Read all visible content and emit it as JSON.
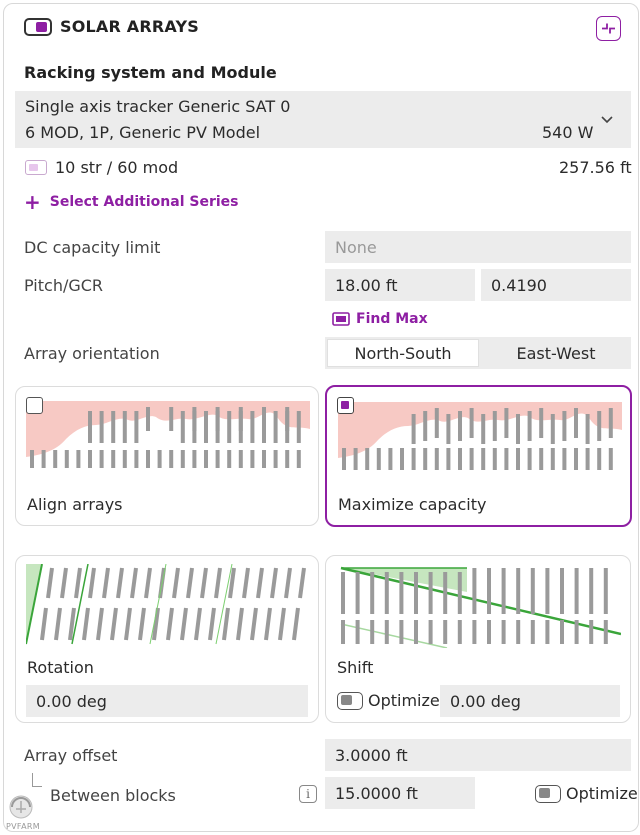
{
  "header": {
    "title": "SOLAR ARRAYS"
  },
  "racking": {
    "section_label": "Racking system and Module",
    "line1": "Single axis tracker Generic SAT 0",
    "line2": "6 MOD, 1P, Generic PV Model",
    "power": "540 W",
    "series": "10 str / 60 mod",
    "length": "257.56 ft",
    "add_series_label": "Select Additional Series"
  },
  "dc_capacity": {
    "label": "DC capacity limit",
    "placeholder": "None"
  },
  "pitch": {
    "label": "Pitch/GCR",
    "pitch_value": "18.00 ft",
    "gcr_value": "0.4190",
    "find_max_label": "Find Max"
  },
  "orientation": {
    "label": "Array orientation",
    "options": [
      "North-South",
      "East-West"
    ],
    "selected": "North-South"
  },
  "layout_options": {
    "align": {
      "label": "Align arrays",
      "checked": false
    },
    "maximize": {
      "label": "Maximize capacity",
      "checked": true
    }
  },
  "rotation": {
    "label": "Rotation",
    "value": "0.00 deg"
  },
  "shift": {
    "label": "Shift",
    "optimize_label": "Optimize",
    "value": "0.00 deg"
  },
  "array_offset": {
    "label": "Array offset",
    "value": "3.0000 ft",
    "between_label": "Between blocks",
    "between_value": "15.0000 ft",
    "optimize_label": "Optimize"
  },
  "branding": {
    "logo_text": "PVFARM"
  },
  "colors": {
    "accent": "#8e1fa3",
    "terrain": "#f7c9c4",
    "green": "#3aa53a"
  }
}
